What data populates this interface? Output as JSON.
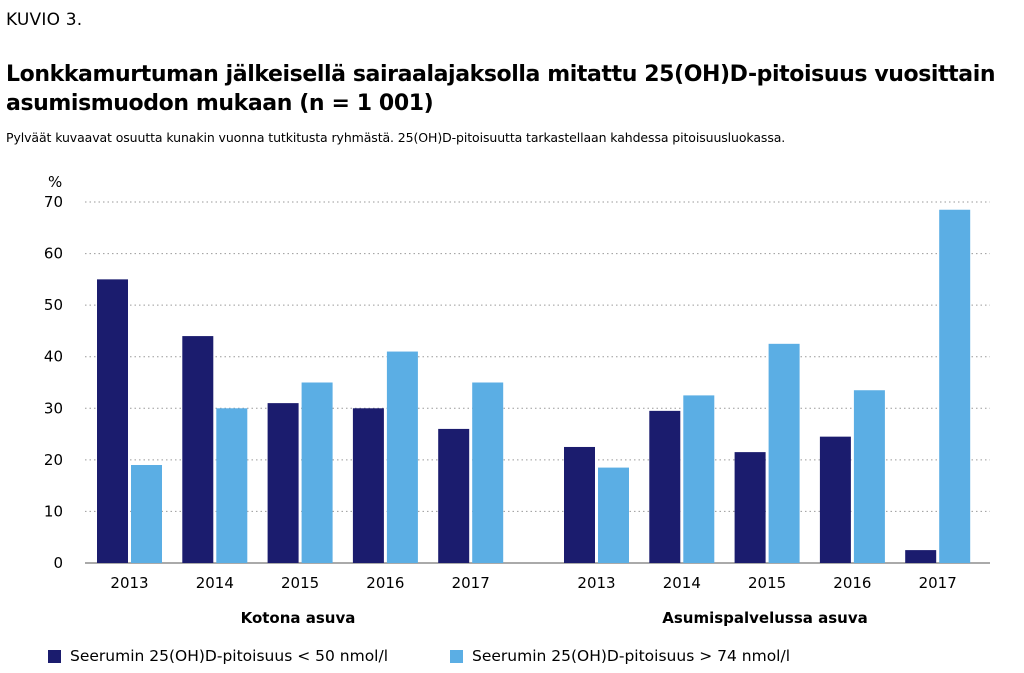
{
  "figure_label": "KUVIO 3.",
  "chart_data": {
    "type": "bar",
    "title": "Lonkkamurtuman jälkeisellä sairaalajaksolla mitattu 25(OH)D-pitoisuus vuosittain asumismuodon mukaan (n = 1 001)",
    "subtitle": "Pylväät kuvaavat osuutta kunakin vuonna tutkitusta ryhmästä. 25(OH)D-pitoisuutta tarkastellaan kahdessa pitoisuusluokassa.",
    "ylabel": "%",
    "ylim": [
      0,
      70
    ],
    "yticks": [
      0,
      10,
      20,
      30,
      40,
      50,
      60,
      70
    ],
    "grid": "horizontal-dotted",
    "legend_position": "bottom",
    "groups": [
      {
        "label": "Kotona asuva",
        "categories": [
          "2013",
          "2014",
          "2015",
          "2016",
          "2017"
        ],
        "series": [
          {
            "name": "Seerumin 25(OH)D-pitoisuus < 50 nmol/l",
            "values": [
              55,
              44,
              31,
              30,
              26
            ]
          },
          {
            "name": "Seerumin 25(OH)D-pitoisuus > 74 nmol/l",
            "values": [
              19,
              30,
              35,
              41,
              35
            ]
          }
        ]
      },
      {
        "label": "Asumispalvelussa asuva",
        "categories": [
          "2013",
          "2014",
          "2015",
          "2016",
          "2017"
        ],
        "series": [
          {
            "name": "Seerumin 25(OH)D-pitoisuus < 50 nmol/l",
            "values": [
              22.5,
              29.5,
              21.5,
              24.5,
              2.5
            ]
          },
          {
            "name": "Seerumin 25(OH)D-pitoisuus > 74 nmol/l",
            "values": [
              18.5,
              32.5,
              42.5,
              33.5,
              68.5
            ]
          }
        ]
      }
    ],
    "series_colors": [
      "#1b1c6e",
      "#5baee4"
    ]
  },
  "legend": [
    {
      "label": "Seerumin 25(OH)D-pitoisuus < 50 nmol/l",
      "color": "#1b1c6e"
    },
    {
      "label": "Seerumin 25(OH)D-pitoisuus > 74 nmol/l",
      "color": "#5baee4"
    }
  ]
}
